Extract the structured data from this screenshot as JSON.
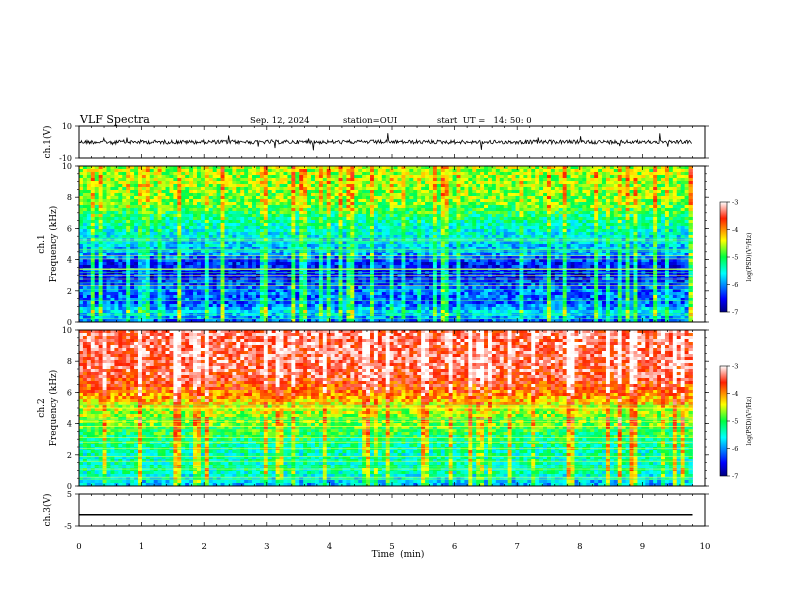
{
  "header": {
    "title": "VLF Spectra",
    "date": "Sep. 12, 2024",
    "station": "station=OUI",
    "start": "start  UT =   14: 50: 0"
  },
  "chart_data": [
    {
      "type": "line",
      "panel": "ch1-waveform",
      "ylabel": "ch.1(V)",
      "ylim": [
        -10,
        10
      ],
      "yticks": [
        "10",
        "-10"
      ],
      "x": [
        0,
        1,
        2,
        3,
        4,
        5,
        6,
        7,
        8,
        9,
        9.8
      ],
      "values": [
        0,
        0,
        0,
        0,
        0,
        0,
        0,
        0,
        0,
        0,
        0
      ]
    },
    {
      "type": "heatmap",
      "panel": "ch1-spectrogram",
      "ylabel": "ch.1\nFrequency  (kHz)",
      "ylim": [
        0,
        10
      ],
      "yticks": [
        "0",
        "2",
        "4",
        "6",
        "8",
        "10"
      ],
      "xlim": [
        0,
        10
      ],
      "data_xmax": 9.8,
      "colorbar": {
        "label": "log(PSD)(V²/Hz)",
        "range": [
          -7,
          -3
        ],
        "ticks": [
          "-3",
          "-4",
          "-5",
          "-6",
          "-7"
        ]
      },
      "profile": [
        {
          "f": 0,
          "v": -6.3
        },
        {
          "f": 0.6,
          "v": -5.6
        },
        {
          "f": 1.2,
          "v": -6.2
        },
        {
          "f": 2,
          "v": -6.1
        },
        {
          "f": 3,
          "v": -6.5
        },
        {
          "f": 3.8,
          "v": -6.4
        },
        {
          "f": 4.4,
          "v": -5.9
        },
        {
          "f": 5.5,
          "v": -5.6
        },
        {
          "f": 6.5,
          "v": -5.3
        },
        {
          "f": 7.5,
          "v": -4.8
        },
        {
          "f": 8.5,
          "v": -4.7
        },
        {
          "f": 10,
          "v": -4.6
        }
      ]
    },
    {
      "type": "heatmap",
      "panel": "ch2-spectrogram",
      "ylabel": "ch.2\nFrequency  (kHz)",
      "ylim": [
        0,
        10
      ],
      "yticks": [
        "0",
        "2",
        "4",
        "6",
        "8",
        "10"
      ],
      "xlim": [
        0,
        10
      ],
      "data_xmax": 9.8,
      "colorbar": {
        "label": "log(PSD)(V²/Hz)",
        "range": [
          -7,
          -3
        ],
        "ticks": [
          "-3",
          "-4",
          "-5",
          "-6",
          "-7"
        ]
      },
      "profile": [
        {
          "f": 0,
          "v": -5.9
        },
        {
          "f": 1,
          "v": -5.3
        },
        {
          "f": 2,
          "v": -5.4
        },
        {
          "f": 3,
          "v": -5.2
        },
        {
          "f": 4,
          "v": -4.8
        },
        {
          "f": 5,
          "v": -4.5
        },
        {
          "f": 6,
          "v": -3.9
        },
        {
          "f": 7,
          "v": -3.5
        },
        {
          "f": 8,
          "v": -3.4
        },
        {
          "f": 10,
          "v": -3.4
        }
      ]
    },
    {
      "type": "line",
      "panel": "ch3-waveform",
      "ylabel": "ch.3(V)",
      "ylim": [
        -5,
        5
      ],
      "yticks": [
        "5",
        "-5"
      ],
      "x": [
        0,
        9.8
      ],
      "values": [
        -1.5,
        -1.5
      ]
    }
  ],
  "xaxis": {
    "label": "Time  (min)",
    "ticks": [
      "0",
      "1",
      "2",
      "3",
      "4",
      "5",
      "6",
      "7",
      "8",
      "9",
      "10"
    ]
  }
}
